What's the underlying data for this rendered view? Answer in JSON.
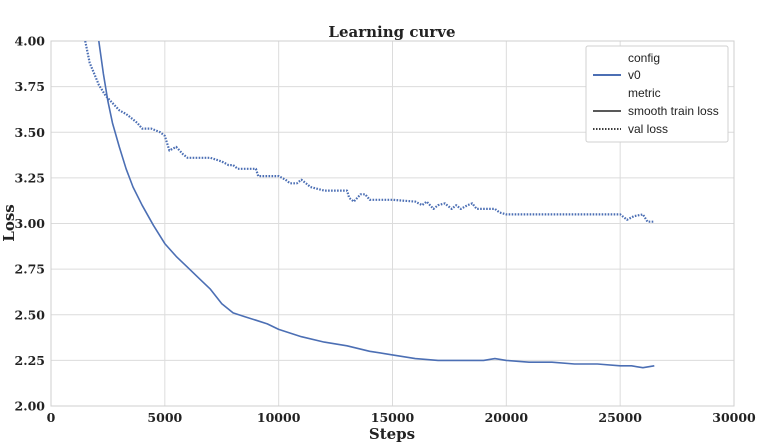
{
  "chart_data": {
    "type": "line",
    "title": "Learning curve",
    "xlabel": "Steps",
    "ylabel": "Loss",
    "xlim": [
      0,
      30000
    ],
    "ylim": [
      2.0,
      4.0
    ],
    "xticks": [
      "0",
      "5000",
      "10000",
      "15000",
      "20000",
      "25000",
      "30000"
    ],
    "yticks": [
      "2.00",
      "2.25",
      "2.50",
      "2.75",
      "3.00",
      "3.25",
      "3.50",
      "3.75",
      "4.00"
    ],
    "grid": true,
    "legend": {
      "position": "top-right",
      "entries": [
        {
          "label": "config",
          "kind": "header"
        },
        {
          "label": "v0",
          "kind": "color",
          "color": "#4c6fb4"
        },
        {
          "label": "metric",
          "kind": "header"
        },
        {
          "label": "smooth train loss",
          "kind": "solid",
          "color": "#222222"
        },
        {
          "label": "val loss",
          "kind": "dotted",
          "color": "#222222"
        }
      ]
    },
    "series": [
      {
        "name": "smooth train loss",
        "color": "#4c6fb4",
        "style": "solid",
        "x": [
          2100,
          2300,
          2500,
          2700,
          3000,
          3300,
          3600,
          4000,
          4500,
          5000,
          5500,
          6000,
          6500,
          7000,
          7500,
          8000,
          8500,
          9000,
          9500,
          10000,
          11000,
          12000,
          13000,
          14000,
          15000,
          16000,
          17000,
          18000,
          19000,
          19500,
          20000,
          21000,
          22000,
          23000,
          24000,
          25000,
          25500,
          26000,
          26500
        ],
        "y": [
          4.0,
          3.82,
          3.67,
          3.55,
          3.42,
          3.3,
          3.2,
          3.1,
          2.99,
          2.89,
          2.82,
          2.76,
          2.7,
          2.64,
          2.56,
          2.51,
          2.49,
          2.47,
          2.45,
          2.42,
          2.38,
          2.35,
          2.33,
          2.3,
          2.28,
          2.26,
          2.25,
          2.25,
          2.25,
          2.26,
          2.25,
          2.24,
          2.24,
          2.23,
          2.23,
          2.22,
          2.22,
          2.21,
          2.22
        ]
      },
      {
        "name": "val loss",
        "color": "#4c6fb4",
        "style": "dotted",
        "x": [
          1500,
          1700,
          1900,
          2100,
          2400,
          2700,
          3000,
          3300,
          3500,
          3800,
          4000,
          4400,
          4800,
          5000,
          5200,
          5500,
          5800,
          6000,
          7000,
          7500,
          7800,
          8000,
          8200,
          9000,
          9100,
          10000,
          10300,
          10500,
          10800,
          11000,
          11200,
          11400,
          12000,
          13000,
          13100,
          13300,
          13600,
          13800,
          14000,
          15000,
          16000,
          16300,
          16500,
          16800,
          17000,
          17300,
          17600,
          17800,
          18000,
          18300,
          18500,
          18700,
          19000,
          19500,
          19700,
          20000,
          21000,
          23000,
          25000,
          25300,
          25600,
          26000,
          26200,
          26500
        ],
        "y": [
          4.0,
          3.88,
          3.82,
          3.76,
          3.7,
          3.66,
          3.62,
          3.6,
          3.58,
          3.55,
          3.52,
          3.52,
          3.5,
          3.48,
          3.4,
          3.42,
          3.38,
          3.36,
          3.36,
          3.34,
          3.32,
          3.32,
          3.3,
          3.3,
          3.26,
          3.26,
          3.24,
          3.22,
          3.22,
          3.24,
          3.22,
          3.2,
          3.18,
          3.18,
          3.14,
          3.12,
          3.16,
          3.16,
          3.13,
          3.13,
          3.12,
          3.1,
          3.12,
          3.08,
          3.1,
          3.11,
          3.08,
          3.1,
          3.08,
          3.1,
          3.11,
          3.08,
          3.08,
          3.08,
          3.06,
          3.05,
          3.05,
          3.05,
          3.05,
          3.02,
          3.04,
          3.05,
          3.01,
          3.01
        ]
      }
    ]
  }
}
